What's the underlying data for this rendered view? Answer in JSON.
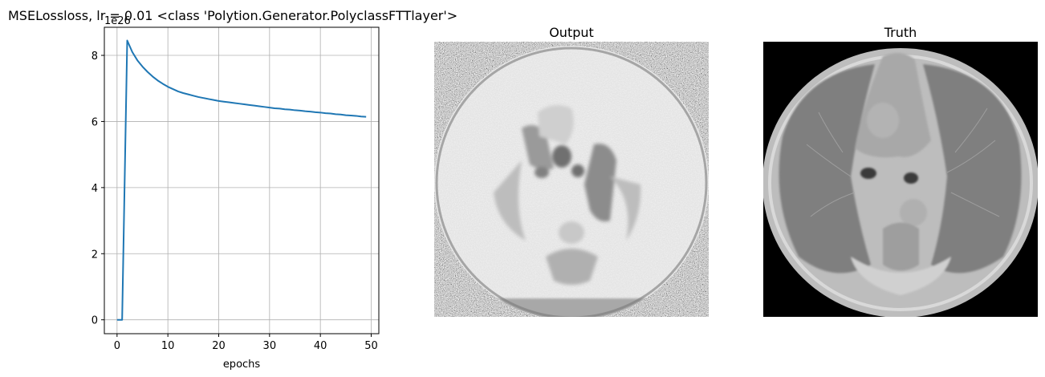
{
  "figure": {
    "title": "MSELossloss, lr = 0.01 <class 'Polytion.Generator.PolyclassFTTlayer'>"
  },
  "chart_data": {
    "type": "line",
    "title": "MSELossloss, lr = 0.01 <class 'Polytion.Generator.PolyclassFTTlayer'>",
    "xlabel": "epochs",
    "ylabel": "",
    "y_offset_label": "1e26",
    "xlim": [
      -2.5,
      51.5
    ],
    "ylim": [
      -0.42,
      8.85
    ],
    "xticks": [
      0,
      10,
      20,
      30,
      40,
      50
    ],
    "yticks": [
      0,
      2,
      4,
      6,
      8
    ],
    "grid": true,
    "line_color": "#1f77b4",
    "series": [
      {
        "x": [
          0,
          1,
          2,
          3,
          4,
          5,
          6,
          7,
          8,
          9,
          10,
          11,
          12,
          13,
          14,
          15,
          16,
          17,
          18,
          19,
          20,
          21,
          22,
          23,
          24,
          25,
          26,
          27,
          28,
          29,
          30,
          31,
          32,
          33,
          34,
          35,
          36,
          37,
          38,
          39,
          40,
          41,
          42,
          43,
          44,
          45,
          46,
          47,
          48,
          49
        ],
        "y": [
          0,
          0,
          8.45,
          8.1,
          7.85,
          7.66,
          7.5,
          7.36,
          7.24,
          7.14,
          7.05,
          6.98,
          6.91,
          6.86,
          6.82,
          6.78,
          6.74,
          6.71,
          6.68,
          6.65,
          6.62,
          6.6,
          6.58,
          6.56,
          6.54,
          6.52,
          6.5,
          6.48,
          6.46,
          6.44,
          6.42,
          6.4,
          6.39,
          6.37,
          6.36,
          6.34,
          6.33,
          6.31,
          6.3,
          6.28,
          6.27,
          6.25,
          6.24,
          6.22,
          6.21,
          6.19,
          6.18,
          6.17,
          6.15,
          6.14
        ]
      }
    ]
  },
  "panels": {
    "output": {
      "title": "Output"
    },
    "truth": {
      "title": "Truth"
    }
  }
}
